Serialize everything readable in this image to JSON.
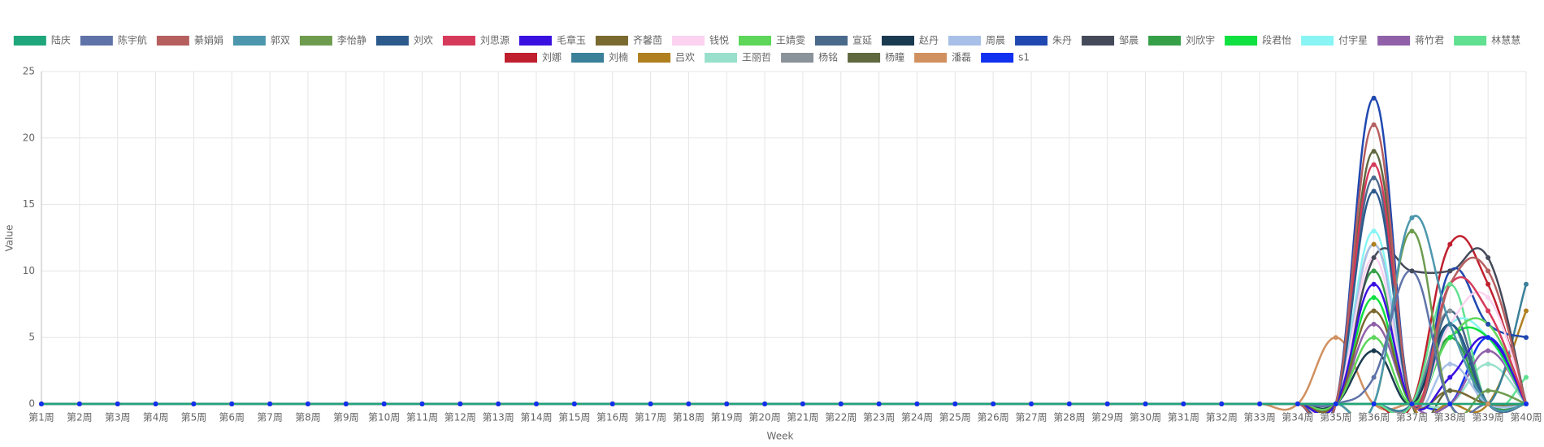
{
  "chart_data": {
    "type": "line",
    "x_label": "Week",
    "y_label": "Value",
    "categories": [
      "第1周",
      "第2周",
      "第3周",
      "第4周",
      "第5周",
      "第6周",
      "第7周",
      "第8周",
      "第9周",
      "第10周",
      "第11周",
      "第12周",
      "第13周",
      "第14周",
      "第15周",
      "第16周",
      "第17周",
      "第18周",
      "第19周",
      "第20周",
      "第21周",
      "第22周",
      "第23周",
      "第24周",
      "第25周",
      "第26周",
      "第27周",
      "第28周",
      "第29周",
      "第30周",
      "第31周",
      "第32周",
      "第33周",
      "第34周",
      "第35周",
      "第36周",
      "第37周",
      "第38周",
      "第39周",
      "第40周"
    ],
    "ylim": [
      0,
      25
    ],
    "yticks": [
      0,
      5,
      10,
      15,
      20,
      25
    ],
    "grid": true,
    "legend": "top",
    "series": [
      {
        "name": "陆庆",
        "color": "#1fa67a",
        "values": [
          0,
          0,
          0,
          0,
          0,
          0,
          0,
          0,
          0,
          0,
          0,
          0,
          0,
          0,
          0,
          0,
          0,
          0,
          0,
          0,
          0,
          0,
          0,
          0,
          0,
          0,
          0,
          0,
          0,
          0,
          0,
          0,
          0,
          0,
          0,
          0,
          0,
          0,
          0,
          0
        ]
      },
      {
        "name": "陈宇航",
        "color": "#5f73a8",
        "values": [
          0,
          0,
          0,
          0,
          0,
          0,
          0,
          0,
          0,
          0,
          0,
          0,
          0,
          0,
          0,
          0,
          0,
          0,
          0,
          0,
          0,
          0,
          0,
          0,
          0,
          0,
          0,
          0,
          0,
          0,
          0,
          0,
          0,
          0,
          0,
          2,
          10,
          0,
          0,
          0
        ]
      },
      {
        "name": "綦娟娟",
        "color": "#b55f5f",
        "values": [
          0,
          0,
          0,
          0,
          0,
          0,
          0,
          0,
          0,
          0,
          0,
          0,
          0,
          0,
          0,
          0,
          0,
          0,
          0,
          0,
          0,
          0,
          0,
          0,
          0,
          0,
          0,
          0,
          0,
          0,
          0,
          0,
          0,
          0,
          0,
          21,
          0,
          9,
          10,
          0
        ]
      },
      {
        "name": "郭双",
        "color": "#4c97ad",
        "values": [
          0,
          0,
          0,
          0,
          0,
          0,
          0,
          0,
          0,
          0,
          0,
          0,
          0,
          0,
          0,
          0,
          0,
          0,
          0,
          0,
          0,
          0,
          0,
          0,
          0,
          0,
          0,
          0,
          0,
          0,
          0,
          0,
          0,
          0,
          0,
          0,
          14,
          6,
          0,
          0
        ]
      },
      {
        "name": "李怡静",
        "color": "#6e9c4f",
        "values": [
          0,
          0,
          0,
          0,
          0,
          0,
          0,
          0,
          0,
          0,
          0,
          0,
          0,
          0,
          0,
          0,
          0,
          0,
          0,
          0,
          0,
          0,
          0,
          0,
          0,
          0,
          0,
          0,
          0,
          0,
          0,
          0,
          0,
          0,
          0,
          0,
          13,
          0,
          1,
          0
        ]
      },
      {
        "name": "刘欢",
        "color": "#2c5a8c",
        "values": [
          0,
          0,
          0,
          0,
          0,
          0,
          0,
          0,
          0,
          0,
          0,
          0,
          0,
          0,
          0,
          0,
          0,
          0,
          0,
          0,
          0,
          0,
          0,
          0,
          0,
          0,
          0,
          0,
          0,
          0,
          0,
          0,
          0,
          0,
          0,
          16,
          0,
          6,
          0,
          0
        ]
      },
      {
        "name": "刘思源",
        "color": "#d63a5a",
        "values": [
          0,
          0,
          0,
          0,
          0,
          0,
          0,
          0,
          0,
          0,
          0,
          0,
          0,
          0,
          0,
          0,
          0,
          0,
          0,
          0,
          0,
          0,
          0,
          0,
          0,
          0,
          0,
          0,
          0,
          0,
          0,
          0,
          0,
          0,
          0,
          18,
          0,
          9,
          7,
          0
        ]
      },
      {
        "name": "毛章玉",
        "color": "#3a10e0",
        "values": [
          0,
          0,
          0,
          0,
          0,
          0,
          0,
          0,
          0,
          0,
          0,
          0,
          0,
          0,
          0,
          0,
          0,
          0,
          0,
          0,
          0,
          0,
          0,
          0,
          0,
          0,
          0,
          0,
          0,
          0,
          0,
          0,
          0,
          0,
          0,
          9,
          0,
          2,
          5,
          0
        ]
      },
      {
        "name": "齐馨茴",
        "color": "#7a6a30",
        "values": [
          0,
          0,
          0,
          0,
          0,
          0,
          0,
          0,
          0,
          0,
          0,
          0,
          0,
          0,
          0,
          0,
          0,
          0,
          0,
          0,
          0,
          0,
          0,
          0,
          0,
          0,
          0,
          0,
          0,
          0,
          0,
          0,
          0,
          0,
          0,
          7,
          0,
          1,
          0,
          0
        ]
      },
      {
        "name": "钱悦",
        "color": "#fbd3f0",
        "values": [
          0,
          0,
          0,
          0,
          0,
          0,
          0,
          0,
          0,
          0,
          0,
          0,
          0,
          0,
          0,
          0,
          0,
          0,
          0,
          0,
          0,
          0,
          0,
          0,
          0,
          0,
          0,
          0,
          0,
          0,
          0,
          0,
          0,
          0,
          0,
          11,
          0,
          6,
          8,
          0
        ]
      },
      {
        "name": "王婧雯",
        "color": "#5dd65a",
        "values": [
          0,
          0,
          0,
          0,
          0,
          0,
          0,
          0,
          0,
          0,
          0,
          0,
          0,
          0,
          0,
          0,
          0,
          0,
          0,
          0,
          0,
          0,
          0,
          0,
          0,
          0,
          0,
          0,
          0,
          0,
          0,
          0,
          0,
          0,
          0,
          5,
          0,
          5,
          6,
          0
        ]
      },
      {
        "name": "宣延",
        "color": "#4a6a8c",
        "values": [
          0,
          0,
          0,
          0,
          0,
          0,
          0,
          0,
          0,
          0,
          0,
          0,
          0,
          0,
          0,
          0,
          0,
          0,
          0,
          0,
          0,
          0,
          0,
          0,
          0,
          0,
          0,
          0,
          0,
          0,
          0,
          0,
          0,
          0,
          0,
          17,
          0,
          7,
          0,
          0
        ]
      },
      {
        "name": "赵丹",
        "color": "#1a3a50",
        "values": [
          0,
          0,
          0,
          0,
          0,
          0,
          0,
          0,
          0,
          0,
          0,
          0,
          0,
          0,
          0,
          0,
          0,
          0,
          0,
          0,
          0,
          0,
          0,
          0,
          0,
          0,
          0,
          0,
          0,
          0,
          0,
          0,
          0,
          0,
          0,
          4,
          0,
          6,
          0,
          0
        ]
      },
      {
        "name": "周晨",
        "color": "#a8c0e8",
        "values": [
          0,
          0,
          0,
          0,
          0,
          0,
          0,
          0,
          0,
          0,
          0,
          0,
          0,
          0,
          0,
          0,
          0,
          0,
          0,
          0,
          0,
          0,
          0,
          0,
          0,
          0,
          0,
          0,
          0,
          0,
          0,
          0,
          0,
          0,
          0,
          12,
          0,
          3,
          0,
          0
        ]
      },
      {
        "name": "朱丹",
        "color": "#2048b0",
        "values": [
          0,
          0,
          0,
          0,
          0,
          0,
          0,
          0,
          0,
          0,
          0,
          0,
          0,
          0,
          0,
          0,
          0,
          0,
          0,
          0,
          0,
          0,
          0,
          0,
          0,
          0,
          0,
          0,
          0,
          0,
          0,
          0,
          0,
          0,
          0,
          23,
          0,
          10,
          6,
          5
        ]
      },
      {
        "name": "邹晨",
        "color": "#454a5a",
        "values": [
          0,
          0,
          0,
          0,
          0,
          0,
          0,
          0,
          0,
          0,
          0,
          0,
          0,
          0,
          0,
          0,
          0,
          0,
          0,
          0,
          0,
          0,
          0,
          0,
          0,
          0,
          0,
          0,
          0,
          0,
          0,
          0,
          0,
          0,
          0,
          11,
          10,
          10,
          11,
          0
        ]
      },
      {
        "name": "刘欣宇",
        "color": "#36a048",
        "values": [
          0,
          0,
          0,
          0,
          0,
          0,
          0,
          0,
          0,
          0,
          0,
          0,
          0,
          0,
          0,
          0,
          0,
          0,
          0,
          0,
          0,
          0,
          0,
          0,
          0,
          0,
          0,
          0,
          0,
          0,
          0,
          0,
          0,
          0,
          0,
          10,
          0,
          5,
          0,
          0
        ]
      },
      {
        "name": "段君怡",
        "color": "#10e040",
        "values": [
          0,
          0,
          0,
          0,
          0,
          0,
          0,
          0,
          0,
          0,
          0,
          0,
          0,
          0,
          0,
          0,
          0,
          0,
          0,
          0,
          0,
          0,
          0,
          0,
          0,
          0,
          0,
          0,
          0,
          0,
          0,
          0,
          0,
          0,
          0,
          8,
          0,
          5,
          5,
          0
        ]
      },
      {
        "name": "付宇星",
        "color": "#88f4f4",
        "values": [
          0,
          0,
          0,
          0,
          0,
          0,
          0,
          0,
          0,
          0,
          0,
          0,
          0,
          0,
          0,
          0,
          0,
          0,
          0,
          0,
          0,
          0,
          0,
          0,
          0,
          0,
          0,
          0,
          0,
          0,
          0,
          0,
          0,
          0,
          0,
          13,
          0,
          6,
          5,
          0
        ]
      },
      {
        "name": "蒋竹君",
        "color": "#9060a8",
        "values": [
          0,
          0,
          0,
          0,
          0,
          0,
          0,
          0,
          0,
          0,
          0,
          0,
          0,
          0,
          0,
          0,
          0,
          0,
          0,
          0,
          0,
          0,
          0,
          0,
          0,
          0,
          0,
          0,
          0,
          0,
          0,
          0,
          0,
          0,
          0,
          6,
          0,
          0,
          4,
          0
        ]
      },
      {
        "name": "林慧慧",
        "color": "#60e090",
        "values": [
          0,
          0,
          0,
          0,
          0,
          0,
          0,
          0,
          0,
          0,
          0,
          0,
          0,
          0,
          0,
          0,
          0,
          0,
          0,
          0,
          0,
          0,
          0,
          0,
          0,
          0,
          0,
          0,
          0,
          0,
          0,
          0,
          0,
          0,
          0,
          0,
          0,
          9,
          0,
          2
        ]
      },
      {
        "name": "刘娜",
        "color": "#c0202e",
        "values": [
          0,
          0,
          0,
          0,
          0,
          0,
          0,
          0,
          0,
          0,
          0,
          0,
          0,
          0,
          0,
          0,
          0,
          0,
          0,
          0,
          0,
          0,
          0,
          0,
          0,
          0,
          0,
          0,
          0,
          0,
          0,
          0,
          0,
          0,
          0,
          0,
          0,
          12,
          9,
          0
        ]
      },
      {
        "name": "刘楠",
        "color": "#3a8098",
        "values": [
          0,
          0,
          0,
          0,
          0,
          0,
          0,
          0,
          0,
          0,
          0,
          0,
          0,
          0,
          0,
          0,
          0,
          0,
          0,
          0,
          0,
          0,
          0,
          0,
          0,
          0,
          0,
          0,
          0,
          0,
          0,
          0,
          0,
          0,
          0,
          0,
          0,
          6,
          0,
          9
        ]
      },
      {
        "name": "吕欢",
        "color": "#b08020",
        "values": [
          0,
          0,
          0,
          0,
          0,
          0,
          0,
          0,
          0,
          0,
          0,
          0,
          0,
          0,
          0,
          0,
          0,
          0,
          0,
          0,
          0,
          0,
          0,
          0,
          0,
          0,
          0,
          0,
          0,
          0,
          0,
          0,
          0,
          0,
          0,
          12,
          0,
          0,
          0,
          7
        ]
      },
      {
        "name": "王丽哲",
        "color": "#98e0cc",
        "values": [
          0,
          0,
          0,
          0,
          0,
          0,
          0,
          0,
          0,
          0,
          0,
          0,
          0,
          0,
          0,
          0,
          0,
          0,
          0,
          0,
          0,
          0,
          0,
          0,
          0,
          0,
          0,
          0,
          0,
          0,
          0,
          0,
          0,
          0,
          0,
          0,
          0,
          0,
          3,
          0
        ]
      },
      {
        "name": "杨铭",
        "color": "#8a929a",
        "values": [
          0,
          0,
          0,
          0,
          0,
          0,
          0,
          0,
          0,
          0,
          0,
          0,
          0,
          0,
          0,
          0,
          0,
          0,
          0,
          0,
          0,
          0,
          0,
          0,
          0,
          0,
          0,
          0,
          0,
          0,
          0,
          0,
          0,
          0,
          0,
          0,
          0,
          7,
          0,
          0
        ]
      },
      {
        "name": "杨瞳",
        "color": "#606840",
        "values": [
          0,
          0,
          0,
          0,
          0,
          0,
          0,
          0,
          0,
          0,
          0,
          0,
          0,
          0,
          0,
          0,
          0,
          0,
          0,
          0,
          0,
          0,
          0,
          0,
          0,
          0,
          0,
          0,
          0,
          0,
          0,
          0,
          0,
          0,
          0,
          19,
          0,
          1,
          0,
          0
        ]
      },
      {
        "name": "潘磊",
        "color": "#d09060",
        "values": [
          0,
          0,
          0,
          0,
          0,
          0,
          0,
          0,
          0,
          0,
          0,
          0,
          0,
          0,
          0,
          0,
          0,
          0,
          0,
          0,
          0,
          0,
          0,
          0,
          0,
          0,
          0,
          0,
          0,
          0,
          0,
          0,
          0,
          0,
          5,
          0,
          0,
          0,
          0,
          0
        ]
      },
      {
        "name": "s1",
        "color": "#1030f0",
        "values": [
          0,
          0,
          0,
          0,
          0,
          0,
          0,
          0,
          0,
          0,
          0,
          0,
          0,
          0,
          0,
          0,
          0,
          0,
          0,
          0,
          0,
          0,
          0,
          0,
          0,
          0,
          0,
          0,
          0,
          0,
          0,
          0,
          0,
          0,
          0,
          0,
          0,
          0,
          5,
          0
        ]
      }
    ]
  }
}
